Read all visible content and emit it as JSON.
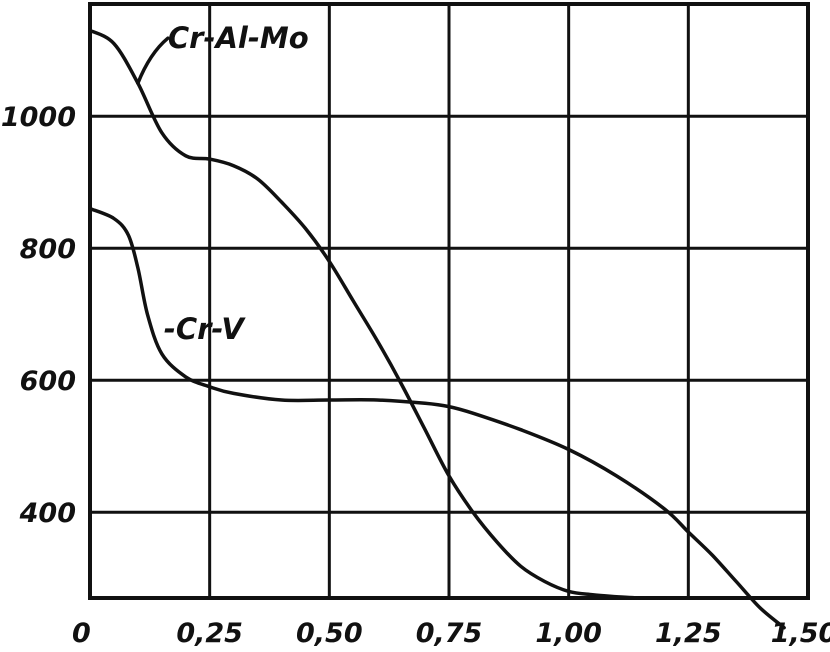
{
  "chart_data": {
    "type": "line",
    "title": "",
    "xlabel": "",
    "ylabel": "",
    "xlim": [
      0,
      1.5
    ],
    "ylim": [
      270,
      1170
    ],
    "grid": true,
    "x_ticks": [
      {
        "value": 0,
        "label": "0"
      },
      {
        "value": 0.25,
        "label": "0,25"
      },
      {
        "value": 0.5,
        "label": "0,50"
      },
      {
        "value": 0.75,
        "label": "0,75"
      },
      {
        "value": 1.0,
        "label": "1,00"
      },
      {
        "value": 1.25,
        "label": "1,25"
      },
      {
        "value": 1.5,
        "label": "1,50"
      }
    ],
    "y_ticks": [
      {
        "value": 400,
        "label": "400"
      },
      {
        "value": 600,
        "label": "600"
      },
      {
        "value": 800,
        "label": "800"
      },
      {
        "value": 1000,
        "label": "1000"
      }
    ],
    "series": [
      {
        "name": "Cr-Al-Mo",
        "x": [
          0,
          0.05,
          0.1,
          0.15,
          0.2,
          0.25,
          0.3,
          0.35,
          0.4,
          0.45,
          0.5,
          0.55,
          0.6,
          0.65,
          0.7,
          0.75,
          0.8,
          0.85,
          0.9,
          0.95,
          1.0,
          1.05,
          1.1,
          1.15,
          1.2
        ],
        "y": [
          1130,
          1110,
          1050,
          975,
          940,
          935,
          925,
          905,
          870,
          830,
          780,
          720,
          660,
          595,
          525,
          455,
          400,
          355,
          318,
          295,
          280,
          275,
          272,
          270,
          270
        ]
      },
      {
        "name": "Cr-V",
        "x": [
          0,
          0.05,
          0.08,
          0.1,
          0.12,
          0.15,
          0.2,
          0.25,
          0.3,
          0.4,
          0.5,
          0.6,
          0.7,
          0.75,
          0.8,
          0.9,
          1.0,
          1.1,
          1.2,
          1.25,
          1.3,
          1.35,
          1.4,
          1.45
        ],
        "y": [
          860,
          845,
          820,
          770,
          700,
          640,
          605,
          590,
          580,
          570,
          570,
          570,
          565,
          560,
          550,
          525,
          495,
          455,
          405,
          370,
          335,
          295,
          255,
          225
        ]
      }
    ],
    "annotations": [
      {
        "text": "Cr-Al-Mo",
        "series": "Cr-Al-Mo",
        "anchor_x": 0.1,
        "anchor_y": 1050
      },
      {
        "text": "-Cr-V",
        "series": "Cr-V",
        "anchor_x": 0.15,
        "anchor_y": 640
      }
    ]
  }
}
